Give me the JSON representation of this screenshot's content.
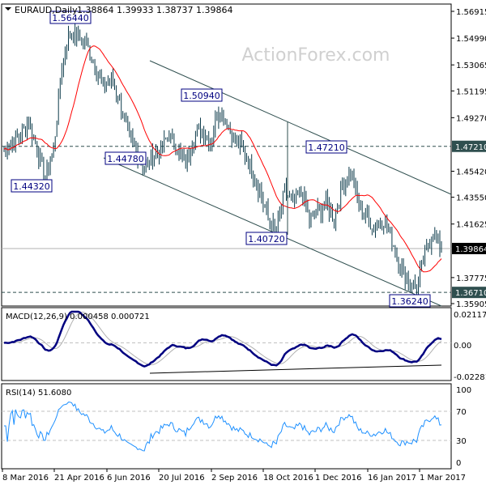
{
  "header": {
    "symbol": "EURAUD,Daily",
    "ohlc": "1.38864 1.39933 1.38737 1.39864"
  },
  "watermark": "ActionForex.com",
  "colors": {
    "bars": "#0b3a4a",
    "ma": "#ff0000",
    "macd": "#000080",
    "signal": "#b0b0b0",
    "rsi": "#1e90ff",
    "label_box": "#000080",
    "price_tag": "#2f4f4f"
  },
  "chart_data": [
    {
      "type": "ohlc",
      "title": "EURAUD,Daily",
      "x_ticks": [
        "8 Mar 2016",
        "21 Apr 2016",
        "6 Jun 2016",
        "20 Jul 2016",
        "2 Sep 2016",
        "18 Oct 2016",
        "1 Dec 2016",
        "16 Jan 2017",
        "1 Mar 2017"
      ],
      "y_ticks": [
        "1.56915",
        "1.54990",
        "1.53065",
        "1.51195",
        "1.49270",
        "1.45420",
        "1.43550",
        "1.41625",
        "1.37775",
        "1.35905"
      ],
      "ylim": [
        1.35905,
        1.56915
      ],
      "weekly_closes": [
        1.47,
        1.475,
        1.48,
        1.49,
        1.47,
        1.45,
        1.47,
        1.53,
        1.555,
        1.55,
        1.545,
        1.53,
        1.515,
        1.52,
        1.505,
        1.48,
        1.47,
        1.455,
        1.465,
        1.47,
        1.48,
        1.47,
        1.46,
        1.48,
        1.485,
        1.475,
        1.5,
        1.49,
        1.475,
        1.47,
        1.455,
        1.44,
        1.42,
        1.41,
        1.44,
        1.43,
        1.44,
        1.42,
        1.425,
        1.43,
        1.42,
        1.445,
        1.455,
        1.43,
        1.42,
        1.415,
        1.42,
        1.405,
        1.385,
        1.375,
        1.37,
        1.395,
        1.41,
        1.39864
      ],
      "current_price": "1.39864",
      "horizontal_levels": [
        "1.47210",
        "1.36710"
      ],
      "annotations": [
        "1.56440",
        "1.44320",
        "1.44780",
        "1.50940",
        "1.40720",
        "1.47210",
        "1.36240"
      ],
      "grid": false
    },
    {
      "type": "line",
      "title": "MACD(12,26,9) 0.000458 0.000721",
      "y_ticks": [
        "0.021171",
        "0.00",
        "-0.022814"
      ],
      "ylim": [
        -0.022814,
        0.021171
      ]
    },
    {
      "type": "line",
      "title": "RSI(14) 51.6080",
      "y_ticks": [
        "100",
        "70",
        "30",
        "0"
      ],
      "ylim": [
        0,
        100
      ],
      "levels": [
        70,
        30
      ]
    }
  ]
}
